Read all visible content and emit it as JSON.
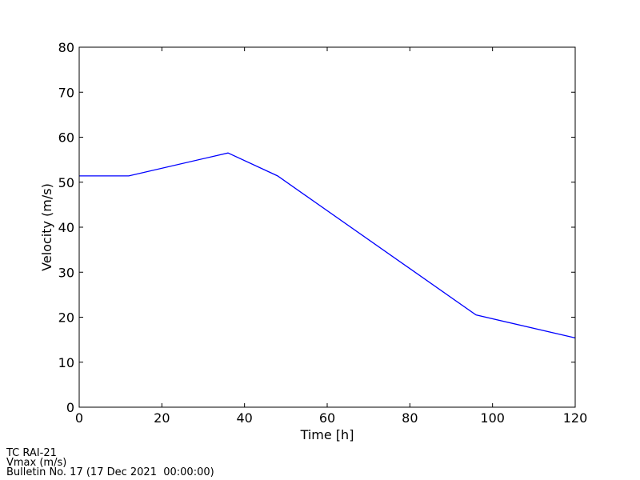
{
  "chart_data": {
    "type": "line",
    "xlabel": "Time [h]",
    "ylabel": "Velocity (m/s)",
    "x": [
      0,
      12,
      36,
      48,
      96,
      120
    ],
    "series": [
      {
        "color": "#0000ff",
        "values": [
          51.4,
          51.4,
          56.5,
          51.4,
          20.5,
          15.4
        ]
      }
    ],
    "xlim": [
      0,
      120
    ],
    "xticks": [
      0,
      20,
      40,
      60,
      80,
      100,
      120
    ],
    "ylim": [
      0,
      80
    ],
    "yticks": [
      0,
      10,
      20,
      30,
      40,
      50,
      60,
      70,
      80
    ],
    "annotations": [
      "TC RAI-21",
      "Vmax (m/s)",
      "Bulletin No. 17 (17 Dec 2021  00:00:00)"
    ]
  }
}
